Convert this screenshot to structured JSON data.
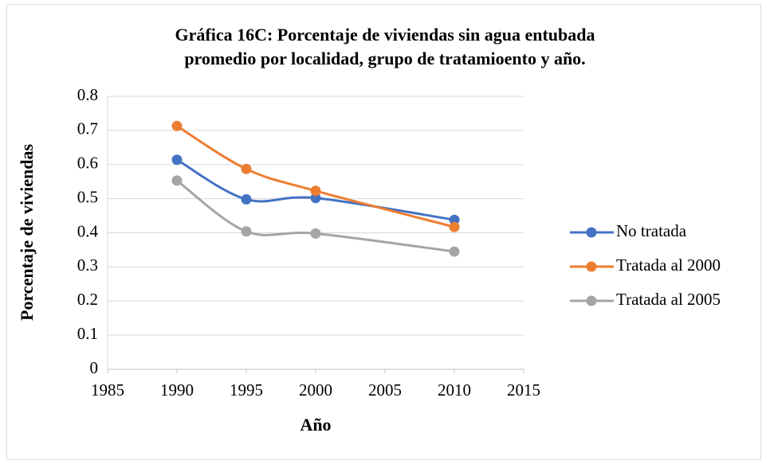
{
  "chart_data": {
    "type": "scatter",
    "title": [
      "Gráfica 16C: Porcentaje de viviendas sin agua entubada",
      "promedio por localidad, grupo de tratamioento y año."
    ],
    "x_label": "Año",
    "y_label": "Porcentaje de viviendas",
    "x": [
      1990,
      1995,
      2000,
      2010
    ],
    "series": [
      {
        "name": "No tratada",
        "color": "#4472c4",
        "values": [
          0.614,
          0.498,
          0.502,
          0.438
        ]
      },
      {
        "name": "Tratada al 2000",
        "color": "#ed7d31",
        "values": [
          0.713,
          0.587,
          0.523,
          0.417
        ]
      },
      {
        "name": "Tratada al 2005",
        "color": "#a5a5a5",
        "values": [
          0.553,
          0.404,
          0.398,
          0.345
        ]
      }
    ],
    "xlim": [
      1985,
      2015
    ],
    "xticks": [
      1985,
      1990,
      1995,
      2000,
      2005,
      2010,
      2015
    ],
    "ylim": [
      0,
      0.8
    ],
    "yticks": [
      0,
      0.1,
      0.2,
      0.3,
      0.4,
      0.5,
      0.6,
      0.7,
      0.8
    ],
    "grid": true,
    "smooth": true,
    "legend": "right"
  }
}
